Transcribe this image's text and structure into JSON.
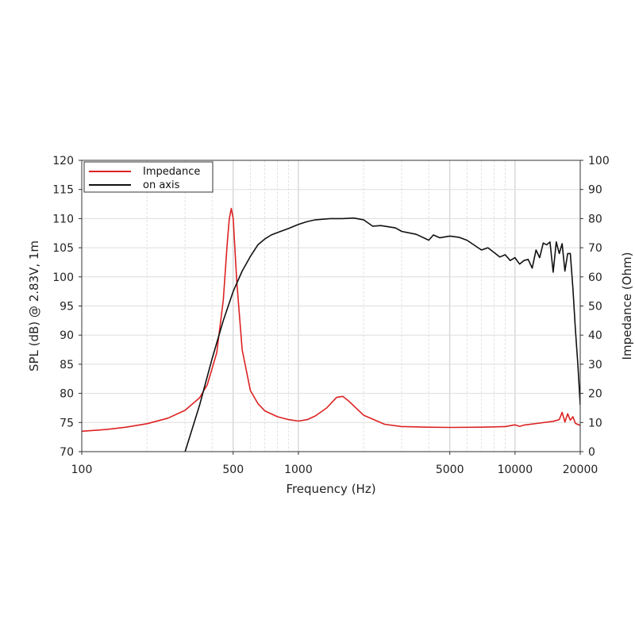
{
  "chart_data": {
    "type": "line",
    "xlabel": "Frequency (Hz)",
    "ylabel_left": "SPL (dB) @ 2.83V, 1m",
    "ylabel_right": "Impedance (Ohm)",
    "x_scale": "log",
    "xlim": [
      100,
      20000
    ],
    "ylim_left": [
      70,
      120
    ],
    "ylim_right": [
      0,
      100
    ],
    "x_ticks": [
      100,
      500,
      1000,
      5000,
      10000,
      20000
    ],
    "x_tick_labels": [
      "100",
      "500",
      "1000",
      "5000",
      "10000",
      "20000"
    ],
    "y_left_ticks": [
      70,
      75,
      80,
      85,
      90,
      95,
      100,
      105,
      110,
      115,
      120
    ],
    "y_right_ticks": [
      0,
      10,
      20,
      30,
      40,
      50,
      60,
      70,
      80,
      90,
      100
    ],
    "grid": true,
    "legend_position": "top-left",
    "series": [
      {
        "name": "Impedance",
        "color": "#dd2222",
        "axis": "right",
        "x": [
          100,
          130,
          160,
          200,
          250,
          300,
          350,
          380,
          420,
          450,
          470,
          480,
          490,
          500,
          520,
          550,
          600,
          650,
          700,
          800,
          900,
          1000,
          1100,
          1200,
          1350,
          1500,
          1600,
          1700,
          2000,
          2500,
          3000,
          4000,
          5000,
          7000,
          9000,
          10000,
          10500,
          11000,
          13000,
          15000,
          16000,
          16500,
          17000,
          17500,
          18000,
          18500,
          19000,
          20000
        ],
        "y": [
          7,
          7.6,
          8.4,
          9.6,
          11.5,
          14.2,
          18.5,
          23,
          34,
          52,
          72,
          80,
          83.5,
          80,
          58,
          35,
          21,
          16.5,
          14,
          12,
          11,
          10.5,
          11,
          12.3,
          15,
          18.6,
          19,
          17.5,
          12.5,
          9.4,
          8.6,
          8.4,
          8.3,
          8.4,
          8.6,
          9.2,
          8.7,
          9.1,
          9.8,
          10.4,
          11,
          13.5,
          10.2,
          13,
          10.8,
          12,
          9.7,
          9
        ]
      },
      {
        "name": "on axis",
        "color": "#111111",
        "axis": "left",
        "x": [
          300,
          350,
          400,
          450,
          500,
          550,
          600,
          650,
          700,
          750,
          800,
          900,
          1000,
          1100,
          1200,
          1400,
          1600,
          1800,
          2000,
          2200,
          2400,
          2800,
          3000,
          3500,
          4000,
          4200,
          4500,
          5000,
          5500,
          6000,
          7000,
          7500,
          8000,
          8500,
          9000,
          9500,
          10000,
          10500,
          11000,
          11500,
          12000,
          12500,
          13000,
          13500,
          14000,
          14500,
          15000,
          15500,
          16000,
          16500,
          17000,
          17500,
          18000,
          18500,
          19000,
          19500,
          20000
        ],
        "y": [
          70,
          78,
          86,
          92.5,
          97.5,
          101,
          103.5,
          105.5,
          106.5,
          107.2,
          107.6,
          108.3,
          109,
          109.5,
          109.8,
          110,
          110,
          110.1,
          109.8,
          108.7,
          108.8,
          108.4,
          107.8,
          107.3,
          106.3,
          107.2,
          106.7,
          107,
          106.8,
          106.3,
          104.6,
          105,
          104.2,
          103.4,
          103.8,
          102.8,
          103.3,
          102.2,
          102.8,
          103,
          101.5,
          104.6,
          103.3,
          105.8,
          105.5,
          106,
          100.8,
          106,
          104,
          105.7,
          101,
          104,
          104,
          98,
          91,
          85,
          78
        ]
      }
    ]
  }
}
